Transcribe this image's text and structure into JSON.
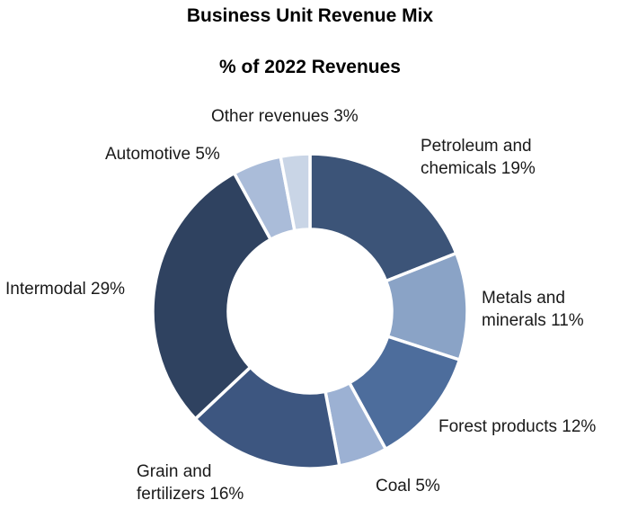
{
  "chart_data": {
    "type": "pie",
    "variant": "donut",
    "title": "Business Unit Revenue Mix",
    "subtitle": "% of 2022 Revenues",
    "legend": "none",
    "slices": [
      {
        "label_lines": [
          "Petroleum and",
          "chemicals 19%"
        ],
        "value": 19,
        "color": "#3c5478"
      },
      {
        "label_lines": [
          "Metals and",
          "minerals 11%"
        ],
        "value": 11,
        "color": "#8aa3c6"
      },
      {
        "label_lines": [
          "Forest products 12%"
        ],
        "value": 12,
        "color": "#4d6d9c"
      },
      {
        "label_lines": [
          "Coal 5%"
        ],
        "value": 5,
        "color": "#9cb1d3"
      },
      {
        "label_lines": [
          "Grain and",
          "fertilizers 16%"
        ],
        "value": 16,
        "color": "#3d5680"
      },
      {
        "label_lines": [
          "Intermodal 29%"
        ],
        "value": 29,
        "color": "#2f4260"
      },
      {
        "label_lines": [
          "Automotive 5%"
        ],
        "value": 5,
        "color": "#aabcd9"
      },
      {
        "label_lines": [
          "Other revenues 3%"
        ],
        "value": 3,
        "color": "#c9d5e6"
      }
    ]
  }
}
